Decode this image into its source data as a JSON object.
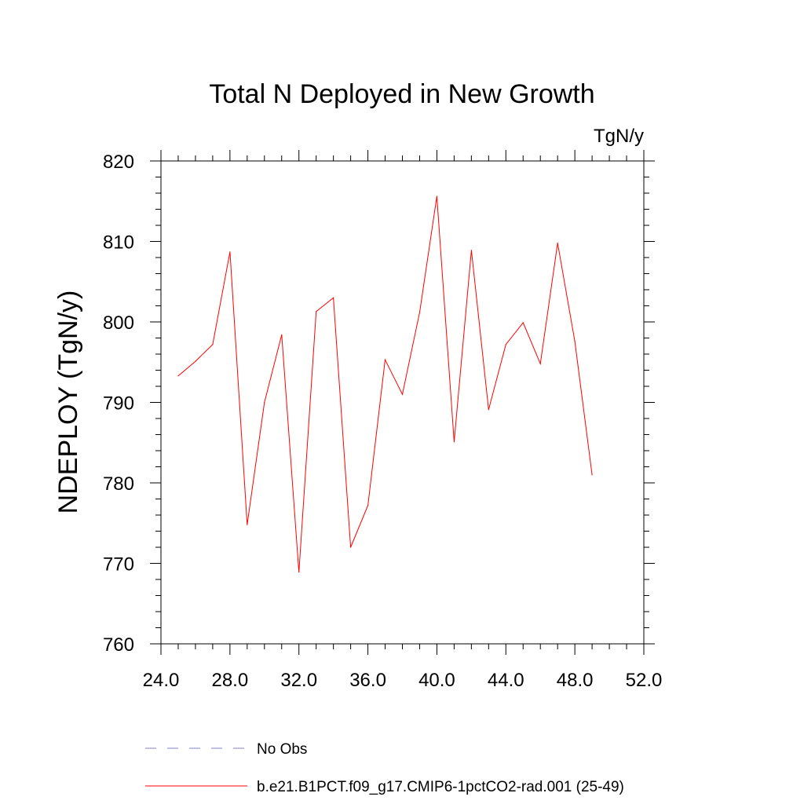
{
  "chart_data": {
    "type": "line",
    "title": "Total N Deployed in New Growth",
    "units_label": "TgN/y",
    "ylabel": "NDEPLOY  (TgN/y)",
    "xlabel": "",
    "xlim": [
      24,
      52
    ],
    "ylim": [
      760,
      820
    ],
    "x_ticks": [
      "24.0",
      "28.0",
      "32.0",
      "36.0",
      "40.0",
      "44.0",
      "48.0",
      "52.0"
    ],
    "y_ticks": [
      "760",
      "770",
      "780",
      "790",
      "800",
      "810",
      "820"
    ],
    "series": [
      {
        "name": "b.e21.B1PCT.f09_g17.CMIP6-1pctCO2-rad.001 (25-49)",
        "color": "#ff0000",
        "x": [
          25,
          26,
          27,
          28,
          29,
          30,
          31,
          32,
          33,
          34,
          35,
          36,
          37,
          38,
          39,
          40,
          41,
          42,
          43,
          44,
          45,
          46,
          47,
          48,
          49
        ],
        "y": [
          793.3,
          795.1,
          797.2,
          808.7,
          774.8,
          790.0,
          798.4,
          768.9,
          801.3,
          803.0,
          772.0,
          777.2,
          795.3,
          791.0,
          801.2,
          815.6,
          785.1,
          808.9,
          789.1,
          797.2,
          799.9,
          794.8,
          809.8,
          797.6,
          781.0
        ]
      }
    ],
    "legend": {
      "position": "bottom",
      "entries": [
        {
          "label": "No Obs",
          "color": "#8080c0",
          "dash": "dashed"
        },
        {
          "label": "b.e21.B1PCT.f09_g17.CMIP6-1pctCO2-rad.001 (25-49)",
          "color": "#ff0000",
          "dash": "solid"
        }
      ]
    }
  }
}
